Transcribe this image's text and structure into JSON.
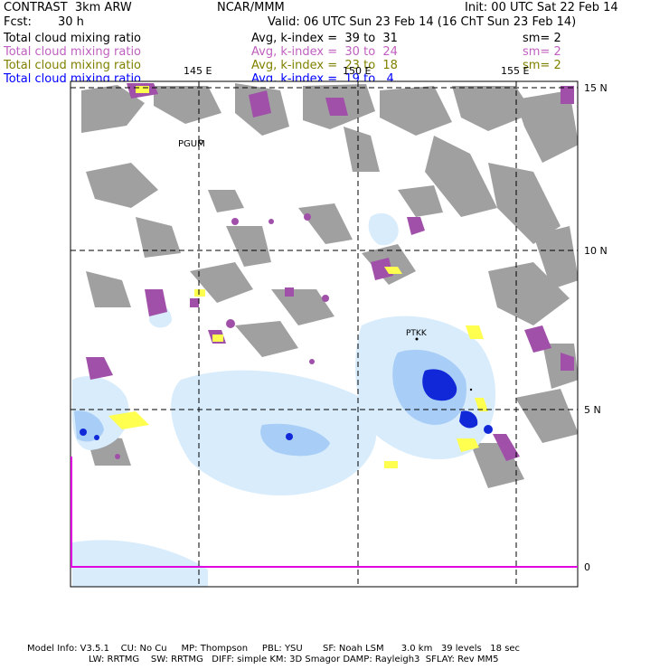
{
  "header": {
    "model": "CONTRAST  3km ARW",
    "org": "NCAR/MMM",
    "init": "Init: 00 UTC Sat 22 Feb 14",
    "fcst_label": "Fcst:",
    "fcst_value": "30 h",
    "valid": "Valid: 06 UTC Sun 23 Feb 14 (16 ChT Sun 23 Feb 14)"
  },
  "fields": [
    {
      "name": "Total cloud mixing ratio",
      "stat": "Avg, k-index =  39 to  31",
      "smooth": "sm= 2",
      "color": "#000000"
    },
    {
      "name": "Total cloud mixing ratio",
      "stat": "Avg, k-index =  30 to  24",
      "smooth": "sm= 2",
      "color": "#c060c0"
    },
    {
      "name": "Total cloud mixing ratio",
      "stat": "Avg, k-index =  23 to  18",
      "smooth": "sm= 2",
      "color": "#808000"
    },
    {
      "name": "Total cloud mixing ratio",
      "stat": "Avg, k-index =  19 to   4",
      "smooth": "",
      "color": "#0000ff"
    }
  ],
  "map": {
    "lon_labels": [
      "145 E",
      "150 E",
      "155 E"
    ],
    "lat_labels": [
      "15 N",
      "10 N",
      "5 N",
      "0"
    ],
    "stations": [
      "PGUM",
      "PTKK"
    ],
    "colors": {
      "high_cloud": "#a0a0a0",
      "mid_cloud": "#a050a8",
      "lowmid_cloud": "#ffff50",
      "low_cloud_light": "#d8ecfc",
      "low_cloud_mid": "#a8cdf6",
      "low_cloud_dark": "#1028d8",
      "boundary": "#e000e0"
    }
  },
  "footer": {
    "line1": "Model Info: V3.5.1    CU: No Cu     MP: Thompson     PBL: YSU       SF: Noah LSM      3.0 km   39 levels   18 sec",
    "line2": "LW: RRTMG    SW: RRTMG   DIFF: simple KM: 3D Smagor DAMP: Rayleigh3  SFLAY: Rev MM5"
  }
}
